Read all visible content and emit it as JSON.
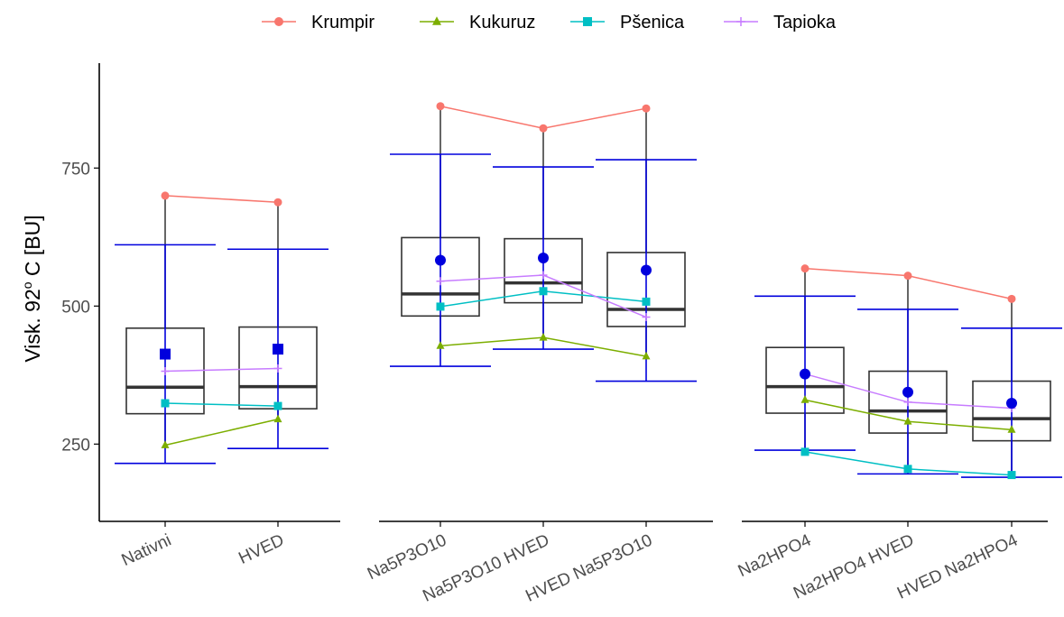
{
  "chart_data": {
    "type": "boxplot-with-lines",
    "ylabel_prefix": "Visk. 92",
    "ylabel_sup": "o",
    "ylabel_suffix": " C [BU]",
    "ylim": [
      110,
      940
    ],
    "yticks": [
      250,
      500,
      750
    ],
    "legend_position": "top",
    "grid": false,
    "series": [
      {
        "name": "Krumpir",
        "color": "#F8766D",
        "marker": "circle",
        "values": [
          700,
          688,
          862,
          822,
          858,
          568,
          555,
          513
        ]
      },
      {
        "name": "Kukuruz",
        "color": "#7CAE00",
        "marker": "triangle",
        "values": [
          248,
          295,
          428,
          443,
          409,
          330,
          291,
          276
        ]
      },
      {
        "name": "Pšenica",
        "color": "#00BFC4",
        "marker": "square",
        "values": [
          324,
          319,
          499,
          527,
          508,
          236,
          205,
          194
        ]
      },
      {
        "name": "Tapioka",
        "color": "#C77CFF",
        "marker": "plus",
        "values": [
          382,
          387,
          545,
          556,
          480,
          377,
          326,
          315
        ]
      }
    ],
    "panels": [
      {
        "categories": [
          "Nativni",
          "HVED"
        ],
        "offset": 0
      },
      {
        "categories": [
          "Na5P3O10",
          "Na5P3O10 HVED",
          "HVED Na5P3O10"
        ],
        "offset": 2
      },
      {
        "categories": [
          "Na2HPO4",
          "Na2HPO4 HVED",
          "HVED Na2HPO4"
        ],
        "offset": 5
      }
    ],
    "boxes": [
      {
        "category": "Nativni",
        "lower_whisker": 248,
        "q1": 305,
        "median": 353,
        "q3": 460,
        "upper_whisker": 700
      },
      {
        "category": "HVED",
        "lower_whisker": 295,
        "q1": 314,
        "median": 354,
        "q3": 462,
        "upper_whisker": 688
      },
      {
        "category": "Na5P3O10",
        "lower_whisker": 428,
        "q1": 482,
        "median": 522,
        "q3": 624,
        "upper_whisker": 862
      },
      {
        "category": "Na5P3O10 HVED",
        "lower_whisker": 443,
        "q1": 506,
        "median": 542,
        "q3": 622,
        "upper_whisker": 822
      },
      {
        "category": "HVED Na5P3O10",
        "lower_whisker": 409,
        "q1": 463,
        "median": 494,
        "q3": 597,
        "upper_whisker": 858
      },
      {
        "category": "Na2HPO4",
        "lower_whisker": 236,
        "q1": 306,
        "median": 354,
        "q3": 425,
        "upper_whisker": 568
      },
      {
        "category": "Na2HPO4 HVED",
        "lower_whisker": 205,
        "q1": 270,
        "median": 310,
        "q3": 382,
        "upper_whisker": 555
      },
      {
        "category": "HVED Na2HPO4",
        "lower_whisker": 194,
        "q1": 256,
        "median": 296,
        "q3": 364,
        "upper_whisker": 513
      }
    ],
    "mean_error": [
      {
        "category": "Nativni",
        "mean": 413,
        "lower": 215,
        "upper": 611,
        "marker": "square"
      },
      {
        "category": "HVED",
        "mean": 422,
        "lower": 242,
        "upper": 603,
        "marker": "square"
      },
      {
        "category": "Na5P3O10",
        "mean": 583,
        "lower": 391,
        "upper": 775,
        "marker": "circle"
      },
      {
        "category": "Na5P3O10 HVED",
        "mean": 587,
        "lower": 422,
        "upper": 752,
        "marker": "circle"
      },
      {
        "category": "HVED Na5P3O10",
        "mean": 565,
        "lower": 364,
        "upper": 765,
        "marker": "circle"
      },
      {
        "category": "Na2HPO4",
        "mean": 377,
        "lower": 239,
        "upper": 518,
        "marker": "circle"
      },
      {
        "category": "Na2HPO4 HVED",
        "mean": 344,
        "lower": 196,
        "upper": 494,
        "marker": "circle"
      },
      {
        "category": "HVED Na2HPO4",
        "mean": 324,
        "lower": 190,
        "upper": 460,
        "marker": "circle"
      }
    ],
    "colors": {
      "box": "#333333",
      "error": "#0000DD",
      "axis": "#000000"
    }
  }
}
